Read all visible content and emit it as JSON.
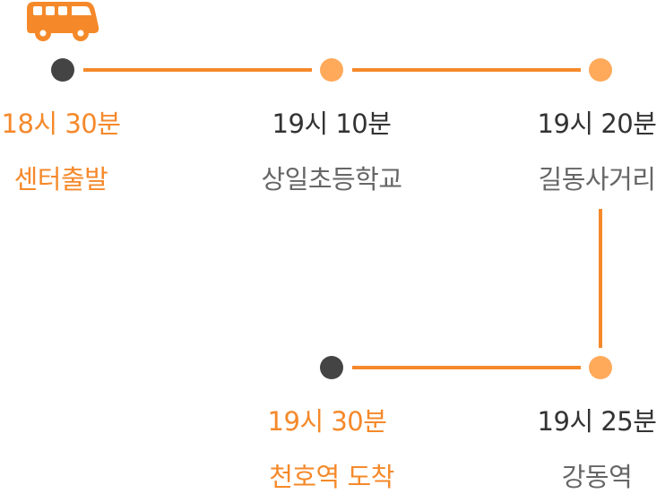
{
  "colors": {
    "accent": "#f5892a",
    "stop_light": "#ffa95a",
    "stop_dark": "#444444",
    "text_dark": "#333333",
    "text_muted": "#666666"
  },
  "icon": "bus-icon",
  "stops": [
    {
      "time": "18시 30분",
      "name": "센터출발",
      "type": "start"
    },
    {
      "time": "19시 10분",
      "name": "상일초등학교",
      "type": "mid"
    },
    {
      "time": "19시 20분",
      "name": "길동사거리",
      "type": "mid"
    },
    {
      "time": "19시 25분",
      "name": "강동역",
      "type": "mid"
    },
    {
      "time": "19시 30분",
      "name": "천호역 도착",
      "type": "end"
    }
  ]
}
